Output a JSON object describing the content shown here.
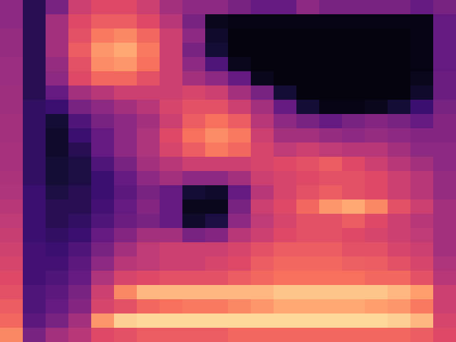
{
  "chart_data": {
    "type": "heatmap",
    "tick_labels": false,
    "zlim": [
      0,
      100
    ],
    "cells": [
      [
        40,
        15,
        35,
        55,
        60,
        60,
        55,
        45,
        40,
        40,
        35,
        30,
        30,
        40,
        35,
        35,
        35,
        35,
        30,
        35
      ],
      [
        40,
        15,
        45,
        60,
        65,
        65,
        60,
        50,
        35,
        5,
        3,
        3,
        3,
        3,
        3,
        3,
        3,
        3,
        3,
        30
      ],
      [
        42,
        15,
        45,
        62,
        72,
        75,
        68,
        55,
        40,
        8,
        2,
        2,
        2,
        2,
        2,
        2,
        2,
        2,
        3,
        30
      ],
      [
        42,
        15,
        45,
        65,
        78,
        82,
        72,
        55,
        35,
        10,
        2,
        2,
        2,
        2,
        2,
        2,
        2,
        2,
        3,
        30
      ],
      [
        43,
        15,
        42,
        62,
        76,
        78,
        70,
        55,
        40,
        25,
        5,
        2,
        2,
        2,
        2,
        2,
        2,
        2,
        3,
        30
      ],
      [
        43,
        15,
        40,
        60,
        68,
        68,
        62,
        55,
        45,
        40,
        30,
        5,
        2,
        2,
        2,
        2,
        2,
        2,
        5,
        32
      ],
      [
        44,
        15,
        30,
        45,
        50,
        55,
        55,
        55,
        58,
        55,
        45,
        35,
        10,
        2,
        2,
        2,
        2,
        2,
        8,
        32
      ],
      [
        44,
        18,
        20,
        35,
        40,
        45,
        50,
        58,
        62,
        62,
        55,
        45,
        30,
        10,
        3,
        3,
        5,
        10,
        20,
        35
      ],
      [
        45,
        18,
        10,
        25,
        35,
        40,
        45,
        55,
        65,
        70,
        65,
        50,
        40,
        35,
        30,
        35,
        38,
        35,
        30,
        38
      ],
      [
        45,
        18,
        8,
        20,
        30,
        40,
        48,
        60,
        70,
        76,
        72,
        55,
        45,
        45,
        42,
        40,
        42,
        40,
        38,
        38
      ],
      [
        46,
        18,
        8,
        15,
        30,
        40,
        48,
        58,
        65,
        72,
        68,
        58,
        52,
        55,
        52,
        50,
        50,
        45,
        40,
        40
      ],
      [
        46,
        18,
        10,
        12,
        25,
        35,
        45,
        50,
        55,
        55,
        55,
        58,
        60,
        62,
        65,
        60,
        55,
        50,
        45,
        40
      ],
      [
        47,
        18,
        10,
        12,
        20,
        30,
        40,
        45,
        40,
        40,
        45,
        55,
        58,
        60,
        62,
        62,
        60,
        55,
        50,
        42
      ],
      [
        48,
        20,
        12,
        15,
        20,
        28,
        35,
        30,
        10,
        8,
        30,
        50,
        58,
        62,
        65,
        62,
        60,
        55,
        50,
        42
      ],
      [
        50,
        20,
        15,
        15,
        22,
        30,
        38,
        30,
        5,
        5,
        35,
        55,
        60,
        68,
        78,
        82,
        75,
        62,
        55,
        45
      ],
      [
        52,
        20,
        15,
        18,
        25,
        32,
        35,
        30,
        8,
        12,
        40,
        52,
        58,
        62,
        62,
        65,
        60,
        55,
        50,
        45
      ],
      [
        54,
        20,
        18,
        20,
        30,
        38,
        45,
        45,
        35,
        38,
        50,
        55,
        60,
        62,
        62,
        60,
        58,
        55,
        52,
        45
      ],
      [
        56,
        22,
        20,
        25,
        35,
        45,
        52,
        55,
        55,
        55,
        58,
        62,
        65,
        65,
        65,
        62,
        62,
        58,
        55,
        45
      ],
      [
        58,
        22,
        22,
        28,
        40,
        50,
        52,
        55,
        55,
        58,
        60,
        65,
        68,
        68,
        68,
        66,
        65,
        62,
        58,
        48
      ],
      [
        60,
        22,
        25,
        30,
        48,
        58,
        60,
        62,
        62,
        62,
        65,
        68,
        70,
        70,
        70,
        70,
        68,
        68,
        62,
        50
      ],
      [
        62,
        25,
        28,
        35,
        55,
        75,
        85,
        85,
        85,
        85,
        85,
        85,
        88,
        88,
        88,
        88,
        88,
        85,
        80,
        55
      ],
      [
        65,
        25,
        30,
        38,
        58,
        62,
        68,
        70,
        72,
        72,
        75,
        78,
        82,
        82,
        82,
        82,
        80,
        78,
        72,
        55
      ],
      [
        68,
        28,
        35,
        45,
        78,
        90,
        92,
        92,
        92,
        92,
        92,
        92,
        92,
        92,
        92,
        92,
        92,
        90,
        85,
        58
      ],
      [
        75,
        35,
        45,
        50,
        60,
        62,
        65,
        65,
        65,
        65,
        68,
        68,
        68,
        68,
        68,
        68,
        68,
        68,
        65,
        60
      ]
    ]
  }
}
